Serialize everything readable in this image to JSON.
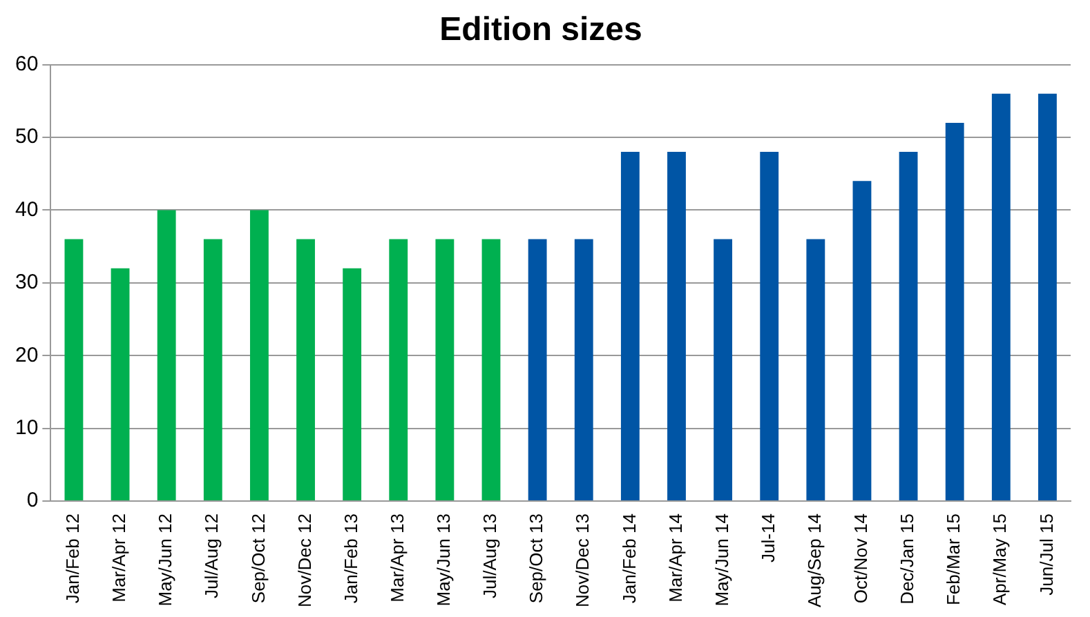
{
  "chart_data": {
    "type": "bar",
    "title": "Edition sizes",
    "categories": [
      "Jan/Feb 12",
      "Mar/Apr 12",
      "May/Jun 12",
      "Jul/Aug 12",
      "Sep/Oct 12",
      "Nov/Dec 12",
      "Jan/Feb 13",
      "Mar/Apr 13",
      "May/Jun 13",
      "Jul/Aug 13",
      "Sep/Oct 13",
      "Nov/Dec 13",
      "Jan/Feb 14",
      "Mar/Apr 14",
      "May/Jun 14",
      "Jul-14",
      "Aug/Sep 14",
      "Oct/Nov 14",
      "Dec/Jan 15",
      "Feb/Mar 15",
      "Apr/May 15",
      "Jun/Jul 15"
    ],
    "values": [
      36,
      32,
      40,
      36,
      40,
      36,
      32,
      36,
      36,
      36,
      36,
      36,
      48,
      48,
      36,
      48,
      36,
      44,
      48,
      52,
      56,
      56
    ],
    "colors": [
      "#00b050",
      "#00b050",
      "#00b050",
      "#00b050",
      "#00b050",
      "#00b050",
      "#00b050",
      "#00b050",
      "#00b050",
      "#00b050",
      "#0055a5",
      "#0055a5",
      "#0055a5",
      "#0055a5",
      "#0055a5",
      "#0055a5",
      "#0055a5",
      "#0055a5",
      "#0055a5",
      "#0055a5",
      "#0055a5",
      "#0055a5"
    ],
    "ylim": [
      0,
      60
    ],
    "yticks": [
      0,
      10,
      20,
      30,
      40,
      50,
      60
    ],
    "grid": "y",
    "legend": false
  }
}
